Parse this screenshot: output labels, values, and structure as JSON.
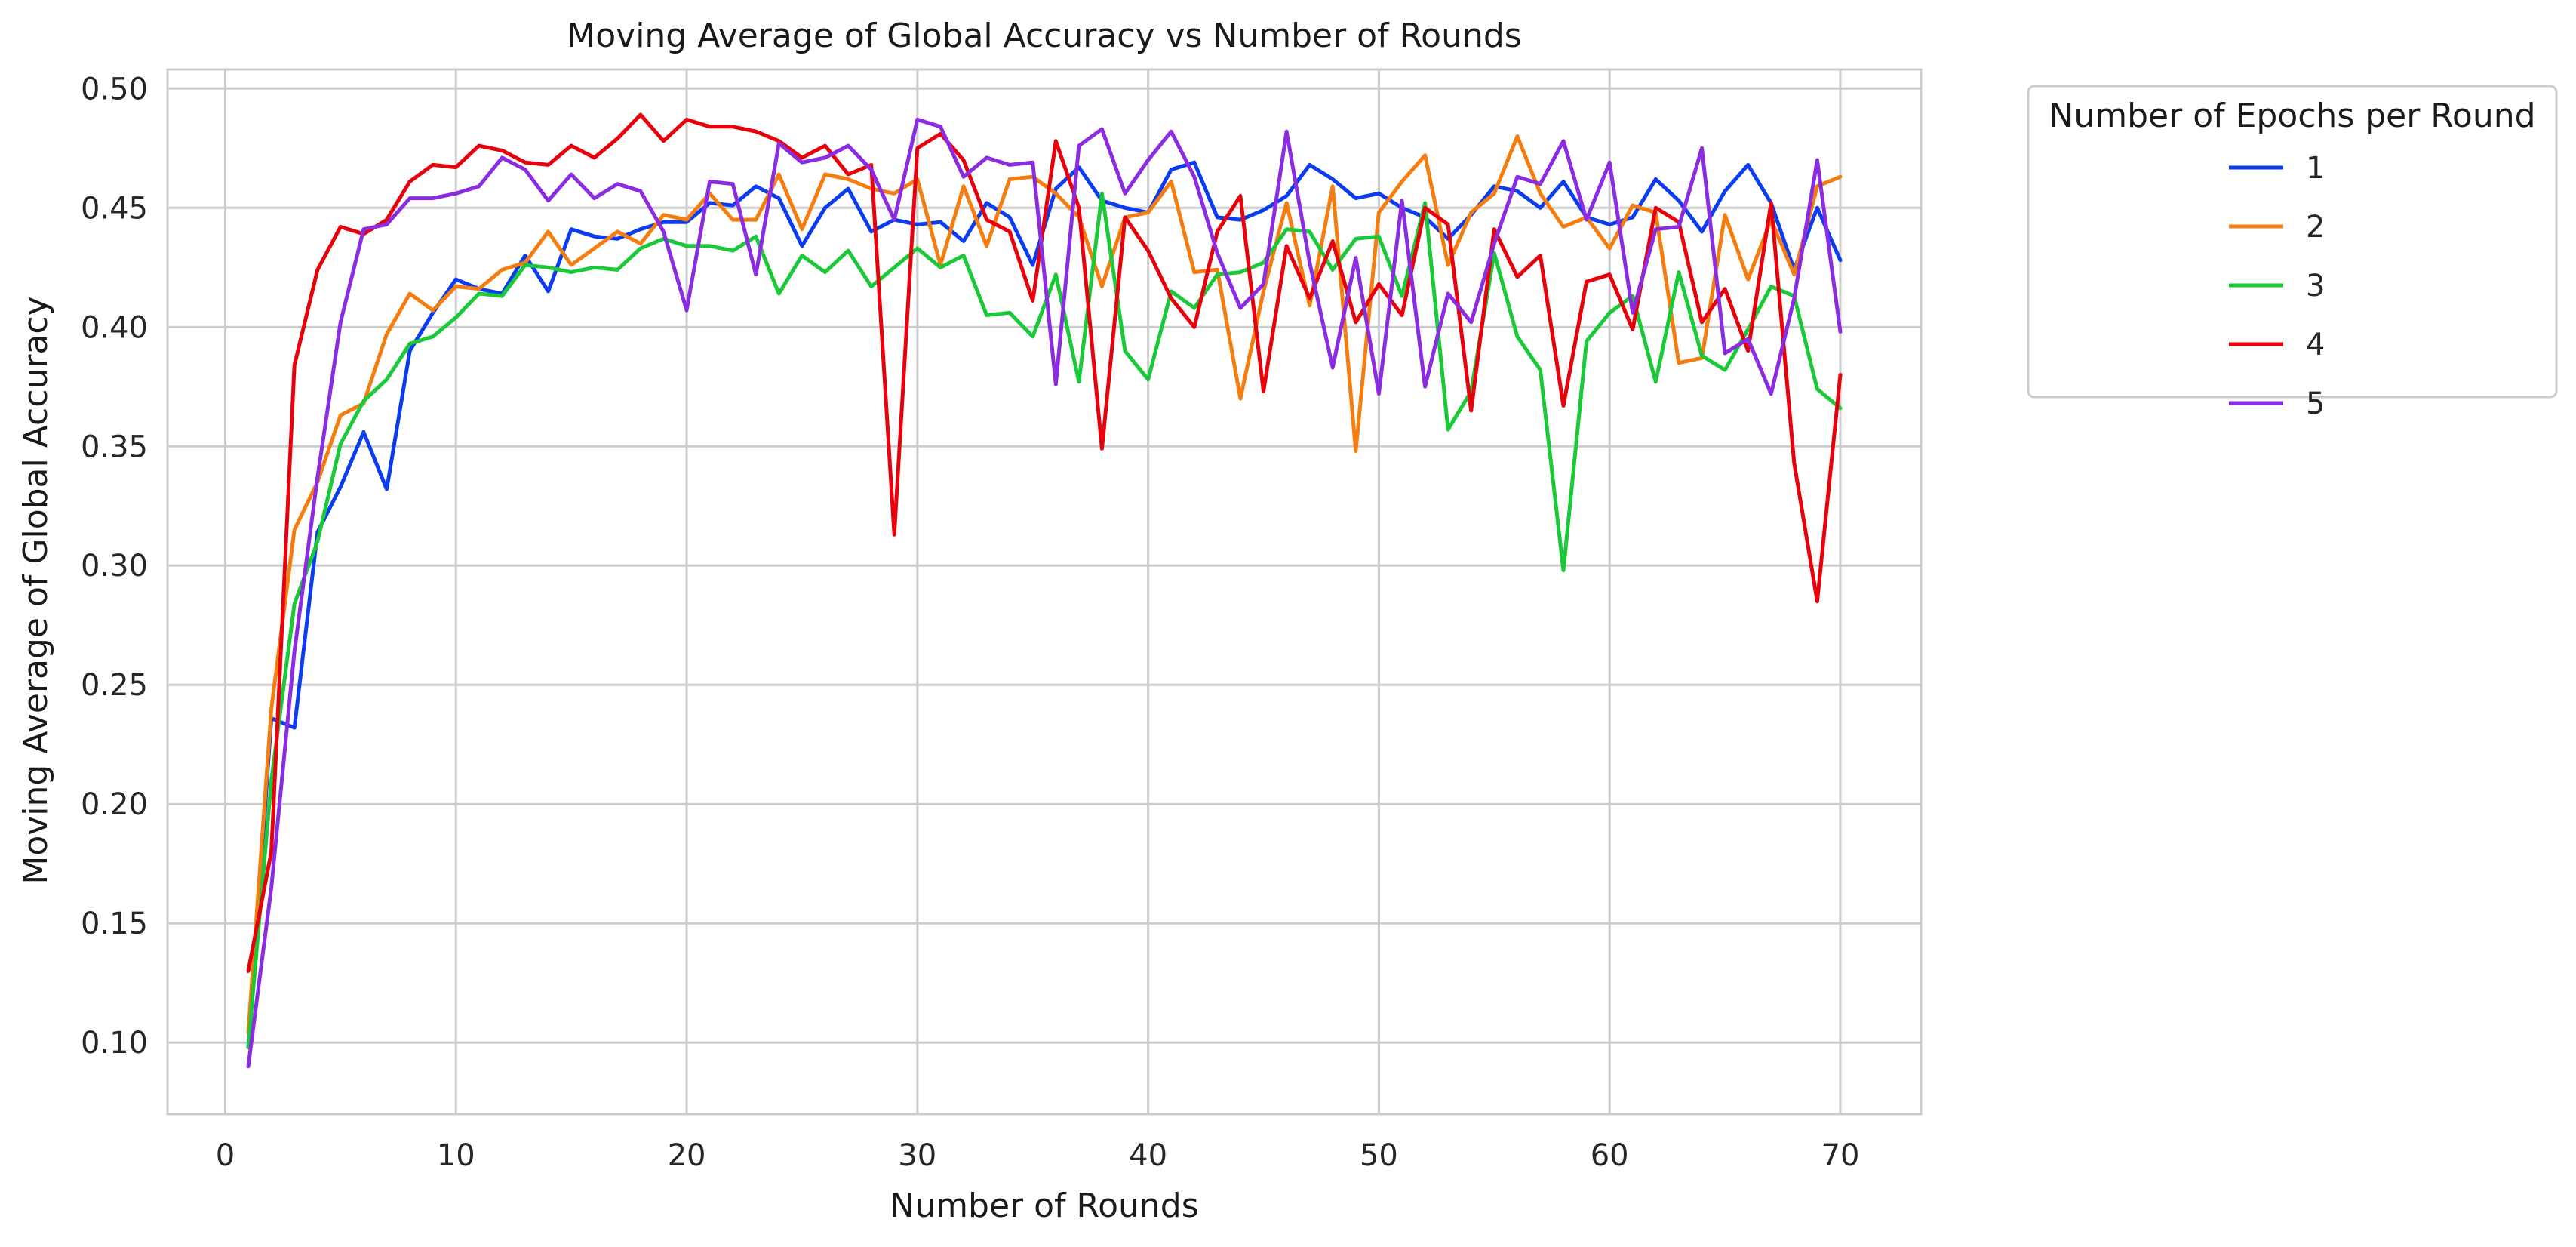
{
  "chart_data": {
    "type": "line",
    "title": "Moving Average of Global Accuracy vs Number of Rounds",
    "xlabel": "Number of Rounds",
    "ylabel": "Moving Average of Global Accuracy",
    "xlim": [
      -2.5,
      73.5
    ],
    "ylim": [
      0.07,
      0.508
    ],
    "x_ticks": [
      0,
      10,
      20,
      30,
      40,
      50,
      60,
      70
    ],
    "x_tick_labels": [
      "0",
      "10",
      "20",
      "30",
      "40",
      "50",
      "60",
      "70"
    ],
    "y_ticks": [
      0.1,
      0.15,
      0.2,
      0.25,
      0.3,
      0.35,
      0.4,
      0.45,
      0.5
    ],
    "y_tick_labels": [
      "0.10",
      "0.15",
      "0.20",
      "0.25",
      "0.30",
      "0.35",
      "0.40",
      "0.45",
      "0.50"
    ],
    "grid": true,
    "legend": {
      "title": "Number of Epochs per Round",
      "placement": "outside-upper-right"
    },
    "x": [
      1,
      2,
      3,
      4,
      5,
      6,
      7,
      8,
      9,
      10,
      11,
      12,
      13,
      14,
      15,
      16,
      17,
      18,
      19,
      20,
      21,
      22,
      23,
      24,
      25,
      26,
      27,
      28,
      29,
      30,
      31,
      32,
      33,
      34,
      35,
      36,
      37,
      38,
      39,
      40,
      41,
      42,
      43,
      44,
      45,
      46,
      47,
      48,
      49,
      50,
      51,
      52,
      53,
      54,
      55,
      56,
      57,
      58,
      59,
      60,
      61,
      62,
      63,
      64,
      65,
      66,
      67,
      68,
      69,
      70
    ],
    "series": [
      {
        "name": "1",
        "color": "#0b3cf0",
        "values": [
          0.098,
          0.236,
          0.232,
          0.314,
          0.333,
          0.356,
          0.332,
          0.39,
          0.406,
          0.42,
          0.416,
          0.414,
          0.43,
          0.415,
          0.441,
          0.438,
          0.437,
          0.441,
          0.444,
          0.444,
          0.452,
          0.451,
          0.459,
          0.454,
          0.434,
          0.45,
          0.458,
          0.44,
          0.445,
          0.443,
          0.444,
          0.436,
          0.452,
          0.446,
          0.426,
          0.458,
          0.467,
          0.453,
          0.45,
          0.448,
          0.466,
          0.469,
          0.446,
          0.445,
          0.449,
          0.455,
          0.468,
          0.462,
          0.454,
          0.456,
          0.45,
          0.446,
          0.437,
          0.447,
          0.459,
          0.457,
          0.45,
          0.461,
          0.446,
          0.443,
          0.446,
          0.462,
          0.453,
          0.44,
          0.457,
          0.468,
          0.452,
          0.424,
          0.45,
          0.428
        ]
      },
      {
        "name": "2",
        "color": "#f57c0e",
        "values": [
          0.104,
          0.24,
          0.315,
          0.335,
          0.363,
          0.368,
          0.397,
          0.414,
          0.407,
          0.417,
          0.416,
          0.424,
          0.427,
          0.44,
          0.426,
          0.433,
          0.44,
          0.435,
          0.447,
          0.445,
          0.456,
          0.445,
          0.445,
          0.464,
          0.441,
          0.464,
          0.462,
          0.458,
          0.456,
          0.462,
          0.426,
          0.459,
          0.434,
          0.462,
          0.463,
          0.456,
          0.446,
          0.417,
          0.446,
          0.448,
          0.461,
          0.423,
          0.424,
          0.37,
          0.415,
          0.452,
          0.409,
          0.459,
          0.348,
          0.448,
          0.461,
          0.472,
          0.426,
          0.448,
          0.456,
          0.48,
          0.456,
          0.442,
          0.446,
          0.433,
          0.451,
          0.448,
          0.385,
          0.387,
          0.447,
          0.42,
          0.445,
          0.422,
          0.459,
          0.463
        ]
      },
      {
        "name": "3",
        "color": "#1ac938",
        "values": [
          0.098,
          0.21,
          0.284,
          0.31,
          0.351,
          0.369,
          0.378,
          0.393,
          0.396,
          0.404,
          0.414,
          0.413,
          0.426,
          0.425,
          0.423,
          0.425,
          0.424,
          0.433,
          0.437,
          0.434,
          0.434,
          0.432,
          0.438,
          0.414,
          0.43,
          0.423,
          0.432,
          0.417,
          0.425,
          0.433,
          0.425,
          0.43,
          0.405,
          0.406,
          0.396,
          0.422,
          0.377,
          0.456,
          0.39,
          0.378,
          0.415,
          0.408,
          0.422,
          0.423,
          0.427,
          0.441,
          0.44,
          0.424,
          0.437,
          0.438,
          0.413,
          0.452,
          0.357,
          0.373,
          0.431,
          0.396,
          0.382,
          0.298,
          0.394,
          0.406,
          0.413,
          0.377,
          0.423,
          0.388,
          0.382,
          0.399,
          0.417,
          0.413,
          0.374,
          0.366
        ]
      },
      {
        "name": "4",
        "color": "#e8000b",
        "values": [
          0.13,
          0.18,
          0.384,
          0.424,
          0.442,
          0.439,
          0.445,
          0.461,
          0.468,
          0.467,
          0.476,
          0.474,
          0.469,
          0.468,
          0.476,
          0.471,
          0.479,
          0.489,
          0.478,
          0.487,
          0.484,
          0.484,
          0.482,
          0.478,
          0.471,
          0.476,
          0.464,
          0.468,
          0.313,
          0.475,
          0.481,
          0.47,
          0.445,
          0.44,
          0.411,
          0.478,
          0.45,
          0.349,
          0.446,
          0.432,
          0.412,
          0.4,
          0.44,
          0.455,
          0.373,
          0.434,
          0.412,
          0.436,
          0.402,
          0.418,
          0.405,
          0.45,
          0.443,
          0.365,
          0.441,
          0.421,
          0.43,
          0.367,
          0.419,
          0.422,
          0.399,
          0.45,
          0.444,
          0.402,
          0.416,
          0.39,
          0.452,
          0.343,
          0.285,
          0.38
        ]
      },
      {
        "name": "5",
        "color": "#8b2be2",
        "values": [
          0.09,
          0.165,
          0.264,
          0.337,
          0.402,
          0.441,
          0.443,
          0.454,
          0.454,
          0.456,
          0.459,
          0.471,
          0.466,
          0.453,
          0.464,
          0.454,
          0.46,
          0.457,
          0.44,
          0.407,
          0.461,
          0.46,
          0.422,
          0.477,
          0.469,
          0.471,
          0.476,
          0.466,
          0.445,
          0.487,
          0.484,
          0.463,
          0.471,
          0.468,
          0.469,
          0.376,
          0.476,
          0.483,
          0.456,
          0.47,
          0.482,
          0.463,
          0.431,
          0.408,
          0.418,
          0.482,
          0.427,
          0.383,
          0.429,
          0.372,
          0.453,
          0.375,
          0.414,
          0.402,
          0.435,
          0.463,
          0.46,
          0.478,
          0.445,
          0.469,
          0.406,
          0.441,
          0.442,
          0.475,
          0.389,
          0.395,
          0.372,
          0.412,
          0.47,
          0.398
        ]
      }
    ]
  }
}
